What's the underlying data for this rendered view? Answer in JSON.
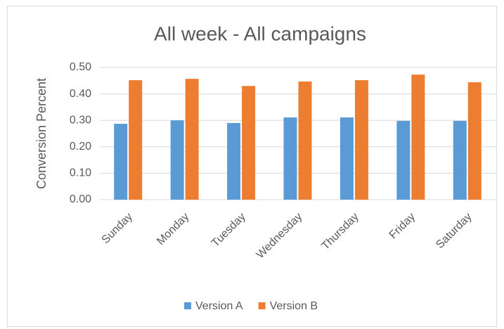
{
  "chart_data": {
    "type": "bar",
    "title": "All week - All campaigns",
    "y_label": "Conversion Percent",
    "categories": [
      "Sunday",
      "Monday",
      "Tuesday",
      "Wednesday",
      "Thursday",
      "Friday",
      "Saturday"
    ],
    "series": [
      {
        "name": "Version A",
        "color": "#5b9bd5",
        "values": [
          0.287,
          0.3,
          0.29,
          0.311,
          0.311,
          0.298,
          0.298
        ]
      },
      {
        "name": "Version B",
        "color": "#ed7d31",
        "values": [
          0.452,
          0.457,
          0.43,
          0.447,
          0.452,
          0.473,
          0.444
        ]
      }
    ],
    "ylim": [
      0,
      0.5
    ],
    "yticks": [
      {
        "value": 0,
        "label": "0.00"
      },
      {
        "value": 0.1,
        "label": "0.10"
      },
      {
        "value": 0.2,
        "label": "0.20"
      },
      {
        "value": 0.3,
        "label": "0.30"
      },
      {
        "value": 0.4,
        "label": "0.40"
      },
      {
        "value": 0.5,
        "label": "0.50"
      }
    ],
    "grid": true,
    "legend": "bottom"
  }
}
